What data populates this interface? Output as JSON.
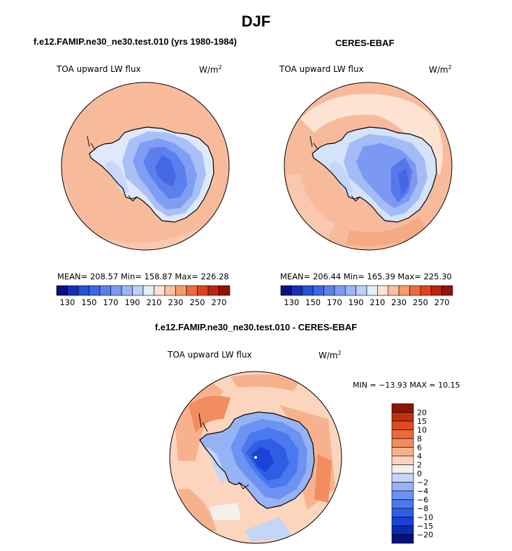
{
  "figure": {
    "title": "DJF"
  },
  "panels": [
    {
      "title": "f.e12.FAMIP.ne30_ne30.test.010 (yrs 1980-1984)",
      "variable": "TOA upward LW flux",
      "units_base": "W/m",
      "units_exp": "2",
      "stats_text": "MEAN= 208.57   Min= 158.87   Max= 226.28",
      "colorbar_labels": [
        "130",
        "150",
        "170",
        "190",
        "210",
        "230",
        "250",
        "270"
      ]
    },
    {
      "title": "CERES-EBAF",
      "variable": "TOA upward LW flux",
      "units_base": "W/m",
      "units_exp": "2",
      "stats_text": "MEAN= 206.44   Min= 165.39   Max= 225.30",
      "colorbar_labels": [
        "130",
        "150",
        "170",
        "190",
        "210",
        "230",
        "250",
        "270"
      ]
    },
    {
      "title": "f.e12.FAMIP.ne30_ne30.test.010 - CERES-EBAF",
      "variable": "TOA upward LW flux",
      "units_base": "W/m",
      "units_exp": "2",
      "stats_text": "MIN = −13.93 MAX =   10.15",
      "colorbar_labels": [
        "20",
        "15",
        "10",
        "8",
        "6",
        "4",
        "2",
        "0",
        "−2",
        "−4",
        "−6",
        "−8",
        "−10",
        "−15",
        "−20"
      ]
    }
  ],
  "chart_data": [
    {
      "type": "heatmap",
      "projection": "south polar stereographic",
      "title": "f.e12.FAMIP.ne30_ne30.test.010 (yrs 1980-1984)",
      "variable": "TOA upward LW flux",
      "units": "W/m^2",
      "mean": 208.57,
      "min": 158.87,
      "max": 226.28,
      "contour_levels": [
        130,
        140,
        150,
        160,
        170,
        180,
        190,
        200,
        210,
        220,
        230,
        240,
        250,
        260,
        270
      ],
      "colors": [
        "#0a0f80",
        "#1530b8",
        "#2850d8",
        "#3e66e6",
        "#5a80ef",
        "#7a9af3",
        "#9cb5f6",
        "#bcd0f8",
        "#e2eefb",
        "#fde2d1",
        "#f9c1a1",
        "#f59a72",
        "#ee6a40",
        "#e0431a",
        "#bb2410",
        "#8e1208"
      ]
    },
    {
      "type": "heatmap",
      "projection": "south polar stereographic",
      "title": "CERES-EBAF",
      "variable": "TOA upward LW flux",
      "units": "W/m^2",
      "mean": 206.44,
      "min": 165.39,
      "max": 225.3,
      "contour_levels": [
        130,
        140,
        150,
        160,
        170,
        180,
        190,
        200,
        210,
        220,
        230,
        240,
        250,
        260,
        270
      ],
      "colors": [
        "#0a0f80",
        "#1530b8",
        "#2850d8",
        "#3e66e6",
        "#5a80ef",
        "#7a9af3",
        "#9cb5f6",
        "#bcd0f8",
        "#e2eefb",
        "#fde2d1",
        "#f9c1a1",
        "#f59a72",
        "#ee6a40",
        "#e0431a",
        "#bb2410",
        "#8e1208"
      ]
    },
    {
      "type": "heatmap",
      "projection": "south polar stereographic",
      "title": "f.e12.FAMIP.ne30_ne30.test.010 - CERES-EBAF",
      "variable": "TOA upward LW flux",
      "units": "W/m^2",
      "min": -13.93,
      "max": 10.15,
      "contour_levels": [
        -20,
        -15,
        -10,
        -8,
        -6,
        -4,
        -2,
        0,
        2,
        4,
        6,
        8,
        10,
        15,
        20
      ],
      "colors": [
        "#08127a",
        "#0c2ab0",
        "#1a44d6",
        "#2f5ee4",
        "#4b78ee",
        "#6c92f2",
        "#95b3f5",
        "#c3d5f8",
        "#f4efe9",
        "#fbd5bd",
        "#f7b28d",
        "#f28d60",
        "#ec6a3a",
        "#df4a1e",
        "#c2300f",
        "#8c1606"
      ]
    }
  ],
  "colors": {
    "ocean_pos_light": "#f9c8ad",
    "ocean_pos_mid": "#f6b394",
    "antarctic_blue": "#6f92ee"
  }
}
